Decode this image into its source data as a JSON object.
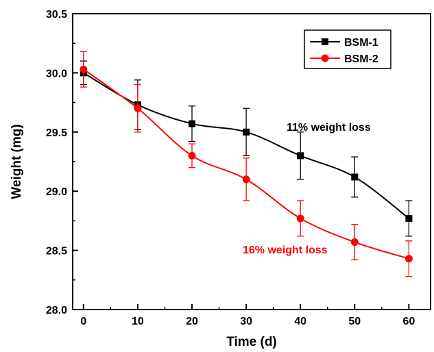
{
  "chart_data": {
    "type": "line",
    "xlabel": "Time (d)",
    "ylabel": "Weight (mg)",
    "xlim": [
      -2,
      64
    ],
    "ylim": [
      28.0,
      30.5
    ],
    "xticks": [
      0,
      10,
      20,
      30,
      40,
      50,
      60
    ],
    "xtick_labels": [
      "0",
      "10",
      "20",
      "30",
      "40",
      "50",
      "60"
    ],
    "yticks": [
      28.0,
      28.5,
      29.0,
      29.5,
      30.0,
      30.5
    ],
    "ytick_labels": [
      "28.0",
      "28.5",
      "29.0",
      "29.5",
      "30.0",
      "30.5"
    ],
    "grid": false,
    "legend_position": "top-right",
    "x": [
      0,
      10,
      20,
      30,
      40,
      50,
      60
    ],
    "series": [
      {
        "name": "BSM-1",
        "color": "#000000",
        "marker": "square",
        "values": [
          30.0,
          29.73,
          29.57,
          29.5,
          29.3,
          29.12,
          28.77
        ],
        "errors": [
          0.1,
          0.21,
          0.15,
          0.2,
          0.2,
          0.17,
          0.15
        ]
      },
      {
        "name": "BSM-2",
        "color": "#ff0000",
        "marker": "circle",
        "values": [
          30.03,
          29.7,
          29.3,
          29.1,
          28.77,
          28.57,
          28.43
        ],
        "errors": [
          0.15,
          0.2,
          0.1,
          0.18,
          0.15,
          0.15,
          0.15
        ]
      }
    ],
    "annotations": [
      {
        "text": "11% weight loss",
        "color": "#000000"
      },
      {
        "text": "16% weight loss",
        "color": "#ff0000"
      }
    ]
  }
}
